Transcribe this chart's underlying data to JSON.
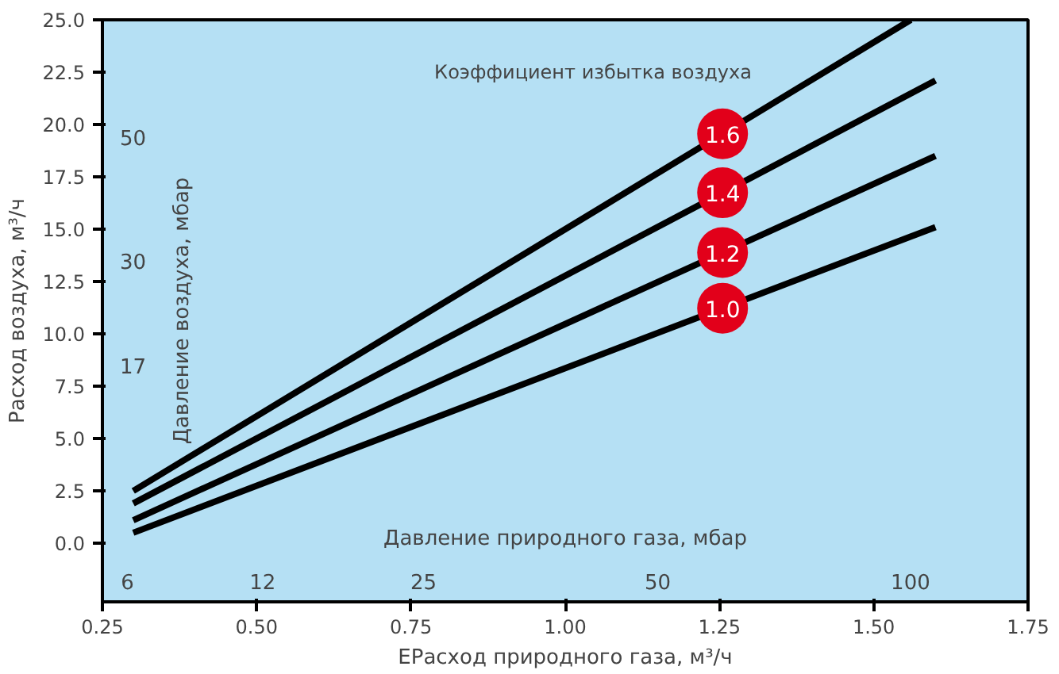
{
  "chart_data": {
    "type": "line",
    "xlabel": "EРасход природного газа, м³/ч",
    "ylabel": "Расход воздуха, м³/ч",
    "legend_title": "Коэффициент избытка воздуха",
    "annotations": [
      "Давление природного газа, мбар",
      "Давление воздуха, мбар",
      "6",
      "12",
      "25",
      "50",
      "100",
      "17",
      "30",
      "50"
    ],
    "xlim": [
      0.25,
      1.75
    ],
    "ylim": [
      -2.8,
      25
    ],
    "xticks": [
      {
        "value": 0.25,
        "label": "0.25"
      },
      {
        "value": 0.5,
        "label": "0.50"
      },
      {
        "value": 0.75,
        "label": "0.75"
      },
      {
        "value": 1.0,
        "label": "1.00"
      },
      {
        "value": 1.25,
        "label": "1.25"
      },
      {
        "value": 1.5,
        "label": "1.50"
      },
      {
        "value": 1.75,
        "label": "1.75"
      }
    ],
    "yticks": [
      {
        "value": 0,
        "label": "0.0"
      },
      {
        "value": 2.5,
        "label": "2.5"
      },
      {
        "value": 5,
        "label": "5.0"
      },
      {
        "value": 7.5,
        "label": "7.5"
      },
      {
        "value": 10,
        "label": "10.0"
      },
      {
        "value": 12.5,
        "label": "12.5"
      },
      {
        "value": 15,
        "label": "15.0"
      },
      {
        "value": 17.5,
        "label": "17.5"
      },
      {
        "value": 20,
        "label": "20.0"
      },
      {
        "value": 22.5,
        "label": "22.5"
      },
      {
        "value": 25,
        "label": "25.0"
      }
    ],
    "series": [
      {
        "name": "1.6",
        "color": "#000000",
        "x": [
          0.3,
          1.56
        ],
        "values": [
          2.5,
          25
        ]
      },
      {
        "name": "1.4",
        "color": "#000000",
        "x": [
          0.3,
          1.6
        ],
        "values": [
          1.9,
          22.1
        ]
      },
      {
        "name": "1.2",
        "color": "#000000",
        "x": [
          0.3,
          1.6
        ],
        "values": [
          1.1,
          18.5
        ]
      },
      {
        "name": "1.0",
        "color": "#000000",
        "x": [
          0.3,
          1.6
        ],
        "values": [
          0.5,
          15.1
        ]
      }
    ],
    "grid": false
  }
}
